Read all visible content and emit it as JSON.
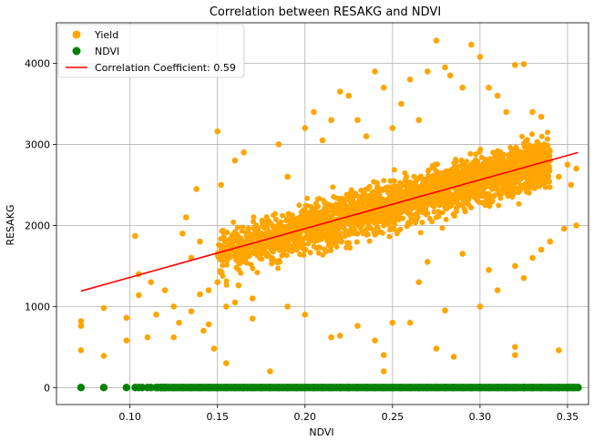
{
  "chart_data": {
    "type": "scatter",
    "title": "Correlation between RESAKG and NDVI",
    "xlabel": "NDVI",
    "ylabel": "RESAKG",
    "xlim": [
      0.058,
      0.362
    ],
    "ylim": [
      -210,
      4500
    ],
    "xticks": [
      0.1,
      0.15,
      0.2,
      0.25,
      0.3,
      0.35
    ],
    "xtick_labels": [
      "0.10",
      "0.15",
      "0.20",
      "0.25",
      "0.30",
      "0.35"
    ],
    "yticks": [
      0,
      1000,
      2000,
      3000,
      4000
    ],
    "ytick_labels": [
      "0",
      "1000",
      "2000",
      "3000",
      "4000"
    ],
    "grid": true,
    "legend_position": "top-left",
    "correlation_coefficient": 0.59,
    "series": [
      {
        "name": "Yield",
        "kind": "scatter",
        "color": "#ffa500",
        "x_range": [
          0.072,
          0.356
        ],
        "trend_start": 1190,
        "trend_end": 2900,
        "cluster": "dense, approx. 1500-3300 between NDVI 0.15 and 0.34",
        "points": [
          [
            0.072,
            820
          ],
          [
            0.072,
            760
          ],
          [
            0.072,
            460
          ],
          [
            0.085,
            980
          ],
          [
            0.085,
            390
          ],
          [
            0.098,
            860
          ],
          [
            0.098,
            580
          ],
          [
            0.103,
            1870
          ],
          [
            0.105,
            1400
          ],
          [
            0.105,
            1140
          ],
          [
            0.11,
            620
          ],
          [
            0.112,
            1300
          ],
          [
            0.115,
            900
          ],
          [
            0.12,
            1200
          ],
          [
            0.125,
            1000
          ],
          [
            0.128,
            800
          ],
          [
            0.13,
            1900
          ],
          [
            0.132,
            2100
          ],
          [
            0.135,
            1600
          ],
          [
            0.138,
            2450
          ],
          [
            0.14,
            1800
          ],
          [
            0.142,
            700
          ],
          [
            0.145,
            1200
          ],
          [
            0.148,
            480
          ],
          [
            0.15,
            3160
          ],
          [
            0.152,
            2500
          ],
          [
            0.155,
            300
          ],
          [
            0.16,
            2800
          ],
          [
            0.165,
            2900
          ],
          [
            0.172,
            2000
          ],
          [
            0.18,
            200
          ],
          [
            0.185,
            3000
          ],
          [
            0.19,
            2600
          ],
          [
            0.2,
            3200
          ],
          [
            0.205,
            3400
          ],
          [
            0.21,
            3050
          ],
          [
            0.215,
            3300
          ],
          [
            0.22,
            3650
          ],
          [
            0.225,
            3600
          ],
          [
            0.23,
            3300
          ],
          [
            0.235,
            3100
          ],
          [
            0.24,
            3900
          ],
          [
            0.245,
            3700
          ],
          [
            0.25,
            3200
          ],
          [
            0.255,
            3500
          ],
          [
            0.26,
            3800
          ],
          [
            0.265,
            3300
          ],
          [
            0.27,
            3900
          ],
          [
            0.275,
            4280
          ],
          [
            0.28,
            3950
          ],
          [
            0.283,
            3850
          ],
          [
            0.29,
            3700
          ],
          [
            0.295,
            4230
          ],
          [
            0.3,
            4080
          ],
          [
            0.305,
            3700
          ],
          [
            0.31,
            3600
          ],
          [
            0.315,
            3400
          ],
          [
            0.32,
            3980
          ],
          [
            0.325,
            3990
          ],
          [
            0.33,
            3400
          ],
          [
            0.335,
            3340
          ],
          [
            0.34,
            2800
          ],
          [
            0.345,
            2600
          ],
          [
            0.35,
            2750
          ],
          [
            0.352,
            2500
          ],
          [
            0.355,
            2700
          ],
          [
            0.355,
            2000
          ],
          [
            0.348,
            1960
          ],
          [
            0.34,
            1800
          ],
          [
            0.335,
            1700
          ],
          [
            0.33,
            1600
          ],
          [
            0.32,
            1500
          ],
          [
            0.31,
            1200
          ],
          [
            0.3,
            1000
          ],
          [
            0.28,
            950
          ],
          [
            0.275,
            480
          ],
          [
            0.285,
            380
          ],
          [
            0.32,
            500
          ],
          [
            0.32,
            400
          ],
          [
            0.345,
            460
          ],
          [
            0.26,
            800
          ],
          [
            0.25,
            800
          ],
          [
            0.245,
            200
          ],
          [
            0.245,
            400
          ],
          [
            0.24,
            580
          ],
          [
            0.23,
            760
          ],
          [
            0.22,
            640
          ],
          [
            0.215,
            620
          ],
          [
            0.2,
            900
          ],
          [
            0.19,
            1000
          ],
          [
            0.17,
            1100
          ],
          [
            0.16,
            1050
          ],
          [
            0.155,
            1000
          ],
          [
            0.15,
            1300
          ],
          [
            0.145,
            780
          ],
          [
            0.14,
            1150
          ],
          [
            0.135,
            940
          ],
          [
            0.125,
            620
          ],
          [
            0.17,
            850
          ],
          [
            0.162,
            1260
          ],
          [
            0.265,
            1300
          ],
          [
            0.27,
            1550
          ],
          [
            0.29,
            1650
          ],
          [
            0.305,
            1450
          ],
          [
            0.325,
            1350
          ]
        ]
      },
      {
        "name": "NDVI",
        "kind": "scatter",
        "color": "#008000",
        "constant_y": 0,
        "x_range": [
          0.072,
          0.356
        ],
        "points": [
          [
            0.072,
            0
          ],
          [
            0.085,
            0
          ],
          [
            0.098,
            0
          ],
          [
            0.103,
            0
          ],
          [
            0.105,
            0
          ],
          [
            0.107,
            0
          ],
          [
            0.11,
            0
          ],
          [
            0.112,
            0
          ],
          [
            0.115,
            0
          ],
          [
            0.118,
            0
          ],
          [
            0.12,
            0
          ],
          [
            0.125,
            0
          ],
          [
            0.13,
            0
          ],
          [
            0.135,
            0
          ],
          [
            0.14,
            0
          ],
          [
            0.145,
            0
          ],
          [
            0.15,
            0
          ],
          [
            0.155,
            0
          ],
          [
            0.16,
            0
          ],
          [
            0.165,
            0
          ],
          [
            0.17,
            0
          ],
          [
            0.175,
            0
          ],
          [
            0.18,
            0
          ],
          [
            0.185,
            0
          ],
          [
            0.19,
            0
          ],
          [
            0.195,
            0
          ],
          [
            0.2,
            0
          ],
          [
            0.205,
            0
          ],
          [
            0.21,
            0
          ],
          [
            0.215,
            0
          ],
          [
            0.22,
            0
          ],
          [
            0.225,
            0
          ],
          [
            0.23,
            0
          ],
          [
            0.235,
            0
          ],
          [
            0.24,
            0
          ],
          [
            0.245,
            0
          ],
          [
            0.25,
            0
          ],
          [
            0.255,
            0
          ],
          [
            0.26,
            0
          ],
          [
            0.265,
            0
          ],
          [
            0.27,
            0
          ],
          [
            0.275,
            0
          ],
          [
            0.28,
            0
          ],
          [
            0.285,
            0
          ],
          [
            0.29,
            0
          ],
          [
            0.295,
            0
          ],
          [
            0.3,
            0
          ],
          [
            0.305,
            0
          ],
          [
            0.31,
            0
          ],
          [
            0.315,
            0
          ],
          [
            0.32,
            0
          ],
          [
            0.325,
            0
          ],
          [
            0.33,
            0
          ],
          [
            0.335,
            0
          ],
          [
            0.34,
            0
          ],
          [
            0.345,
            0
          ],
          [
            0.35,
            0
          ],
          [
            0.353,
            0
          ],
          [
            0.356,
            0
          ]
        ]
      },
      {
        "name": "Correlation Coefficient: 0.59",
        "kind": "line",
        "color": "#ff0000",
        "x": [
          0.072,
          0.356
        ],
        "values": [
          1190,
          2900
        ]
      }
    ]
  }
}
